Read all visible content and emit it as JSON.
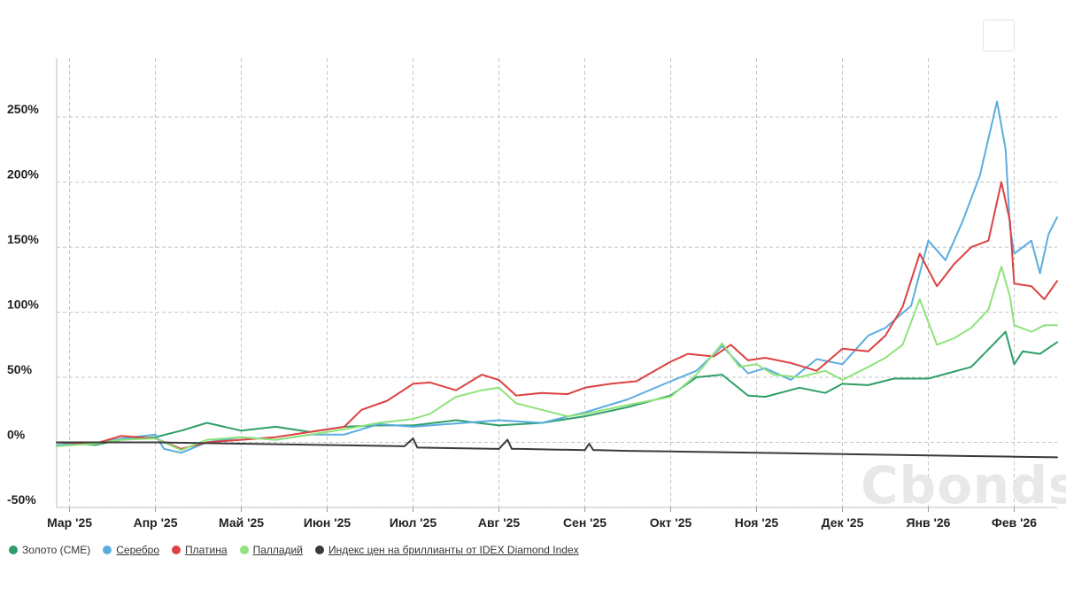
{
  "watermark": "Cbonds",
  "colors": {
    "gold": "#2e9e67",
    "silver": "#5aade0",
    "platinum": "#dd4141",
    "palladium": "#8ee37a",
    "diamond": "#3a3a3a"
  },
  "legend": [
    {
      "label": "Золото (CME)",
      "color": "#2e9e67",
      "underline": false
    },
    {
      "label": "Серебро",
      "color": "#5aade0",
      "underline": true
    },
    {
      "label": "Платина",
      "color": "#dd4141",
      "underline": true
    },
    {
      "label": "Палладий",
      "color": "#8ee37a",
      "underline": true
    },
    {
      "label": "Индекс цен на бриллианты от IDEX Diamond Index",
      "color": "#3a3a3a",
      "underline": true
    }
  ],
  "chart_data": {
    "type": "line",
    "title": "",
    "xlabel": "",
    "ylabel": "",
    "ylim": [
      -50,
      295
    ],
    "xlim": [
      -0.15,
      11.5
    ],
    "grid": true,
    "legend_position": "bottom-left",
    "x_ticks": [
      "Мар '25",
      "Апр '25",
      "Май '25",
      "Июн '25",
      "Июл '25",
      "Авг '25",
      "Сен '25",
      "Окт '25",
      "Ноя '25",
      "Дек '25",
      "Янв '26",
      "Фев '26"
    ],
    "y_ticks": [
      "-50%",
      "0%",
      "50%",
      "100%",
      "150%",
      "200%",
      "250%"
    ],
    "y_tick_values": [
      -50,
      0,
      50,
      100,
      150,
      200,
      250
    ],
    "series": [
      {
        "name": "Золото (CME)",
        "color": "#2e9e67",
        "x": [
          -0.15,
          0.3,
          0.6,
          1.0,
          1.3,
          1.6,
          2.0,
          2.4,
          2.8,
          3.2,
          3.6,
          4.0,
          4.5,
          5.0,
          5.5,
          6.0,
          6.5,
          7.0,
          7.3,
          7.6,
          7.9,
          8.1,
          8.5,
          8.8,
          9.0,
          9.3,
          9.6,
          10.0,
          10.5,
          10.9,
          11.0,
          11.1,
          11.3,
          11.5
        ],
        "values": [
          0,
          -2,
          2,
          4,
          9,
          15,
          9,
          12,
          8,
          12,
          13,
          13,
          17,
          13,
          15,
          20,
          27,
          36,
          50,
          52,
          36,
          35,
          42,
          38,
          45,
          44,
          49,
          49,
          58,
          85,
          60,
          70,
          68,
          77
        ]
      },
      {
        "name": "Серебро",
        "color": "#5aade0",
        "x": [
          -0.15,
          0.3,
          0.6,
          1.0,
          1.1,
          1.3,
          1.6,
          2.0,
          2.4,
          2.8,
          3.2,
          3.6,
          4.0,
          4.4,
          4.8,
          5.0,
          5.5,
          6.0,
          6.5,
          7.0,
          7.3,
          7.6,
          7.9,
          8.1,
          8.4,
          8.7,
          9.0,
          9.3,
          9.5,
          9.8,
          10.0,
          10.2,
          10.4,
          10.6,
          10.8,
          10.9,
          10.95,
          11.0,
          11.2,
          11.3,
          11.4,
          11.5
        ],
        "values": [
          -2,
          -1,
          3,
          6,
          -5,
          -8,
          0,
          4,
          2,
          6,
          6,
          14,
          12,
          14,
          16,
          17,
          15,
          23,
          33,
          47,
          55,
          74,
          53,
          57,
          48,
          64,
          60,
          82,
          88,
          105,
          155,
          140,
          170,
          205,
          262,
          225,
          165,
          145,
          155,
          130,
          160,
          173
        ]
      },
      {
        "name": "Платина",
        "color": "#dd4141",
        "x": [
          -0.15,
          0.3,
          0.6,
          1.0,
          1.3,
          1.6,
          2.0,
          2.4,
          2.8,
          3.2,
          3.4,
          3.7,
          4.0,
          4.2,
          4.5,
          4.8,
          5.0,
          5.2,
          5.5,
          5.8,
          6.0,
          6.3,
          6.6,
          7.0,
          7.2,
          7.5,
          7.7,
          7.9,
          8.1,
          8.4,
          8.7,
          9.0,
          9.3,
          9.5,
          9.7,
          9.9,
          10.1,
          10.3,
          10.5,
          10.7,
          10.85,
          10.95,
          11.0,
          11.2,
          11.35,
          11.5
        ],
        "values": [
          0,
          -1,
          5,
          3,
          -5,
          0,
          2,
          4,
          8,
          12,
          25,
          32,
          45,
          46,
          40,
          52,
          48,
          36,
          38,
          37,
          42,
          45,
          47,
          62,
          68,
          66,
          75,
          63,
          65,
          61,
          55,
          72,
          70,
          82,
          104,
          145,
          120,
          137,
          150,
          155,
          200,
          170,
          122,
          120,
          110,
          124
        ]
      },
      {
        "name": "Палладий",
        "color": "#8ee37a",
        "x": [
          -0.15,
          0.3,
          0.6,
          1.0,
          1.3,
          1.6,
          2.0,
          2.4,
          2.8,
          3.2,
          3.6,
          4.0,
          4.2,
          4.5,
          4.8,
          5.0,
          5.2,
          5.5,
          5.8,
          6.0,
          6.3,
          6.6,
          7.0,
          7.3,
          7.6,
          7.8,
          8.0,
          8.2,
          8.5,
          8.8,
          9.0,
          9.3,
          9.5,
          9.7,
          9.9,
          10.1,
          10.3,
          10.5,
          10.7,
          10.85,
          10.95,
          11.0,
          11.2,
          11.35,
          11.5
        ],
        "values": [
          -3,
          -1,
          2,
          3,
          -6,
          2,
          4,
          2,
          6,
          10,
          15,
          18,
          22,
          35,
          40,
          42,
          30,
          25,
          20,
          22,
          26,
          30,
          35,
          52,
          76,
          58,
          60,
          52,
          50,
          55,
          48,
          58,
          65,
          75,
          110,
          75,
          80,
          88,
          102,
          135,
          112,
          90,
          85,
          90,
          90
        ]
      },
      {
        "name": "Индекс цен на бриллианты от IDEX Diamond Index",
        "color": "#3a3a3a",
        "x": [
          -0.15,
          0.5,
          1.0,
          1.5,
          2.0,
          2.5,
          3.0,
          3.5,
          3.9,
          4.0,
          4.05,
          4.5,
          5.0,
          5.1,
          5.15,
          5.2,
          5.25,
          6.0,
          6.05,
          6.1,
          6.15,
          6.5,
          7.0,
          7.5,
          8.0,
          8.5,
          9.0,
          9.5,
          10.0,
          10.5,
          11.0,
          11.5
        ],
        "values": [
          0,
          0,
          0,
          -0.5,
          -1,
          -1.5,
          -2,
          -2.5,
          -3,
          3,
          -4,
          -4.5,
          -5,
          2,
          -5,
          -5,
          -5,
          -6,
          -1,
          -6,
          -6,
          -6.5,
          -7,
          -7.5,
          -8,
          -8.5,
          -9,
          -9.5,
          -10,
          -10.5,
          -11,
          -11.5
        ]
      }
    ]
  }
}
